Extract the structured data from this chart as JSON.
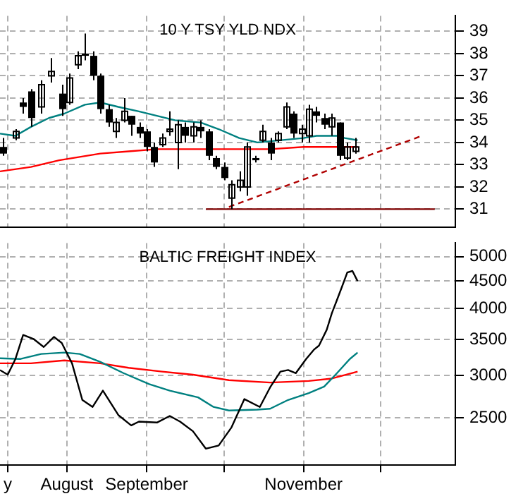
{
  "chart_data": [
    {
      "type": "candlestick",
      "title": "10 Y TSY YLD NDX",
      "xlim": [
        "--07-06",
        "--12-30"
      ],
      "xticks": [
        {
          "value": "--07-09",
          "label": null
        },
        {
          "value": "--08-01",
          "label": null
        },
        {
          "value": "--09-01",
          "label": null
        },
        {
          "value": "--10-01",
          "label": null
        },
        {
          "value": "--11-01",
          "label": null
        },
        {
          "value": "--12-01",
          "label": null
        }
      ],
      "ylim": [
        30.2,
        39.7
      ],
      "yticks": [
        31,
        32,
        33,
        34,
        35,
        36,
        37,
        38,
        39
      ],
      "grid": true,
      "tick_labels": "y",
      "color": "#000000",
      "x": [
        "--07-07",
        "--07-12",
        "--07-15",
        "--07-18",
        "--07-22",
        "--07-26",
        "--07-30",
        "--08-02",
        "--08-05",
        "--08-08",
        "--08-11",
        "--08-14",
        "--08-17",
        "--08-20",
        "--08-23",
        "--08-26",
        "--08-29",
        "--09-01",
        "--09-04",
        "--09-07",
        "--09-10",
        "--09-13",
        "--09-16",
        "--09-19",
        "--09-22",
        "--09-25",
        "--09-28",
        "--10-01",
        "--10-04",
        "--10-07",
        "--10-10",
        "--10-13",
        "--10-16",
        "--10-19",
        "--10-22",
        "--10-25",
        "--10-28",
        "--10-31",
        "--11-03",
        "--11-06",
        "--11-09",
        "--11-12",
        "--11-15",
        "--11-18",
        "--11-21"
      ],
      "ohlc": [
        [
          33.8,
          34.2,
          33.4,
          33.5
        ],
        [
          34.2,
          34.6,
          34.1,
          34.5
        ],
        [
          35.8,
          36.0,
          35.3,
          35.6
        ],
        [
          36.3,
          36.4,
          34.7,
          35.1
        ],
        [
          35.6,
          36.8,
          35.3,
          36.6
        ],
        [
          37.0,
          37.8,
          36.7,
          37.2
        ],
        [
          36.2,
          36.6,
          35.2,
          35.5
        ],
        [
          35.8,
          37.1,
          35.7,
          36.9
        ],
        [
          37.5,
          38.1,
          37.3,
          37.9
        ],
        [
          38.0,
          38.9,
          37.7,
          37.9
        ],
        [
          37.9,
          38.1,
          36.8,
          37.0
        ],
        [
          37.0,
          37.1,
          35.3,
          35.5
        ],
        [
          35.5,
          35.7,
          34.7,
          34.9
        ],
        [
          34.5,
          35.1,
          34.2,
          34.9
        ],
        [
          35.0,
          36.0,
          34.9,
          35.4
        ],
        [
          35.2,
          35.2,
          34.3,
          34.8
        ],
        [
          34.7,
          34.9,
          34.2,
          34.4
        ],
        [
          34.5,
          34.6,
          33.6,
          33.8
        ],
        [
          33.8,
          34.0,
          32.9,
          33.1
        ],
        [
          33.9,
          34.4,
          33.8,
          34.2
        ],
        [
          34.5,
          35.4,
          34.3,
          34.6
        ],
        [
          34.0,
          35.0,
          32.8,
          34.8
        ],
        [
          34.7,
          34.9,
          34.0,
          34.3
        ],
        [
          34.3,
          34.9,
          34.0,
          34.7
        ],
        [
          34.7,
          35.0,
          34.2,
          34.5
        ],
        [
          34.5,
          34.6,
          33.2,
          33.4
        ],
        [
          33.3,
          33.4,
          32.8,
          32.9
        ],
        [
          32.9,
          33.1,
          32.3,
          32.4
        ],
        [
          31.5,
          32.3,
          31.0,
          32.1
        ],
        [
          32.0,
          32.7,
          31.8,
          32.3
        ],
        [
          32.0,
          34.0,
          31.6,
          33.8
        ],
        [
          33.3,
          33.4,
          33.1,
          33.2
        ],
        [
          34.1,
          34.8,
          34.0,
          34.5
        ],
        [
          34.0,
          34.2,
          33.2,
          33.5
        ],
        [
          34.1,
          34.5,
          34.0,
          34.4
        ],
        [
          34.7,
          35.8,
          34.6,
          35.6
        ],
        [
          35.3,
          35.4,
          34.2,
          34.4
        ],
        [
          34.4,
          34.8,
          34.0,
          34.6
        ],
        [
          34.3,
          35.7,
          34.0,
          35.5
        ],
        [
          35.4,
          35.6,
          34.9,
          35.2
        ],
        [
          35.1,
          35.3,
          34.6,
          34.8
        ],
        [
          34.7,
          35.3,
          34.3,
          35.1
        ],
        [
          34.9,
          34.9,
          33.2,
          33.4
        ],
        [
          33.3,
          34.0,
          33.2,
          33.8
        ],
        [
          33.6,
          34.2,
          33.5,
          33.8
        ]
      ],
      "series": [
        {
          "type": "line",
          "color": "#008080",
          "x": [
            "--07-06",
            "--07-12",
            "--07-18",
            "--07-25",
            "--07-31",
            "--08-08",
            "--08-14",
            "--08-21",
            "--08-29",
            "--09-05",
            "--09-12",
            "--09-22",
            "--09-29",
            "--10-07",
            "--10-14",
            "--11-01",
            "--11-06",
            "--11-14",
            "--11-17",
            "--11-22"
          ],
          "values": [
            34.4,
            34.3,
            34.7,
            35.1,
            35.3,
            35.7,
            35.8,
            35.6,
            35.4,
            35.2,
            35.0,
            34.9,
            34.6,
            34.2,
            34.0,
            34.2,
            34.3,
            34.3,
            34.2,
            34.1
          ]
        },
        {
          "type": "line",
          "color": "#ff0000",
          "x": [
            "--07-06",
            "--07-18",
            "--07-29",
            "--08-14",
            "--08-25",
            "--09-05",
            "--09-19",
            "--10-03",
            "--10-19",
            "--11-01",
            "--11-22"
          ],
          "values": [
            32.7,
            32.9,
            33.2,
            33.5,
            33.6,
            33.7,
            33.7,
            33.7,
            33.7,
            33.8,
            33.8
          ]
        },
        {
          "type": "line",
          "color": "#800000",
          "x": [
            "--09-24",
            "--12-22"
          ],
          "values": [
            31.0,
            31.0
          ]
        },
        {
          "type": "line",
          "color": "#b00000",
          "line_style": "dashed",
          "x": [
            "--10-03",
            "--12-17"
          ],
          "values": [
            31.1,
            34.3
          ]
        }
      ]
    },
    {
      "type": "line",
      "title": "BALTIC FREIGHT INDEX",
      "xlim": [
        "--07-06",
        "--12-30"
      ],
      "xticks": [
        {
          "value": "--07-09",
          "label": "y"
        },
        {
          "value": "--08-01",
          "label": "August"
        },
        {
          "value": "--09-01",
          "label": "September"
        },
        {
          "value": "--10-01",
          "label": null
        },
        {
          "value": "--11-01",
          "label": "November"
        },
        {
          "value": "--12-01",
          "label": null
        }
      ],
      "ylim": [
        2040,
        5300
      ],
      "yticks": [
        2500,
        3000,
        3500,
        4000,
        4500,
        5000
      ],
      "log": true,
      "grid": true,
      "series": [
        {
          "type": "line",
          "color": "#000000",
          "x": [
            "--07-06",
            "--07-09",
            "--07-12",
            "--07-15",
            "--07-19",
            "--07-23",
            "--07-27",
            "--07-30",
            "--08-03",
            "--08-07",
            "--08-11",
            "--08-15",
            "--08-21",
            "--08-26",
            "--08-29",
            "--09-05",
            "--09-10",
            "--09-14",
            "--09-19",
            "--09-24",
            "--09-29",
            "--10-04",
            "--10-09",
            "--10-15",
            "--10-19",
            "--10-23",
            "--10-26",
            "--10-29",
            "--11-02",
            "--11-05",
            "--11-07",
            "--11-10",
            "--11-12",
            "--11-14",
            "--11-16",
            "--11-18",
            "--11-20",
            "--11-22"
          ],
          "values": [
            3070,
            3010,
            3220,
            3570,
            3510,
            3390,
            3540,
            3450,
            3160,
            2700,
            2620,
            2810,
            2530,
            2420,
            2460,
            2450,
            2520,
            2460,
            2360,
            2190,
            2220,
            2400,
            2710,
            2620,
            2850,
            3050,
            3070,
            3030,
            3220,
            3350,
            3410,
            3650,
            3920,
            4150,
            4400,
            4670,
            4700,
            4500
          ]
        },
        {
          "type": "line",
          "color": "#008080",
          "x": [
            "--07-06",
            "--07-14",
            "--07-22",
            "--07-31",
            "--08-06",
            "--08-14",
            "--08-23",
            "--09-02",
            "--09-10",
            "--09-21",
            "--09-27",
            "--10-03",
            "--10-14",
            "--10-19",
            "--10-26",
            "--11-03",
            "--11-09",
            "--11-14",
            "--11-19",
            "--11-22"
          ],
          "values": [
            3230,
            3220,
            3290,
            3310,
            3290,
            3180,
            3030,
            2890,
            2810,
            2730,
            2620,
            2580,
            2590,
            2600,
            2700,
            2780,
            2860,
            3030,
            3220,
            3310
          ]
        },
        {
          "type": "line",
          "color": "#ff0000",
          "x": [
            "--07-06",
            "--07-18",
            "--07-31",
            "--08-14",
            "--08-25",
            "--09-07",
            "--09-19",
            "--10-03",
            "--10-19",
            "--11-03",
            "--11-12",
            "--11-22"
          ],
          "values": [
            3160,
            3160,
            3200,
            3160,
            3100,
            3050,
            3010,
            2940,
            2910,
            2930,
            2960,
            3050
          ]
        }
      ]
    }
  ]
}
